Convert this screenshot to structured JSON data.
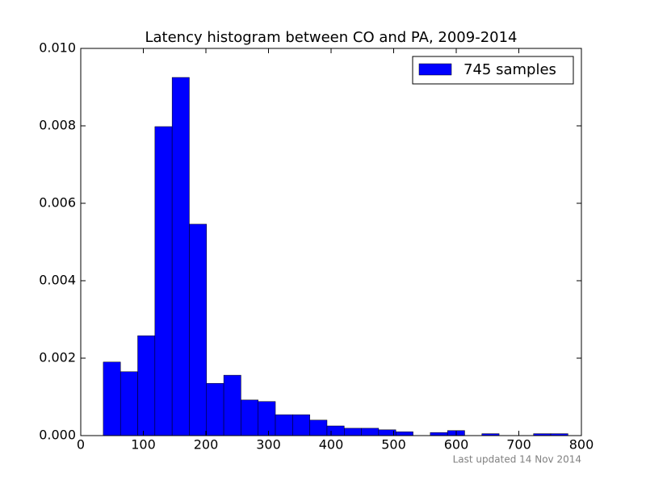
{
  "chart_data": {
    "type": "histogram",
    "title": "Latency histogram between CO and PA, 2009-2014",
    "footnote": "Last updated 14 Nov 2014",
    "bins": [
      36,
      63.5,
      91,
      118.5,
      146,
      173.5,
      201,
      228.5,
      256,
      283.5,
      311,
      338.5,
      366,
      393.5,
      421,
      448.5,
      476,
      503.5,
      531,
      558.5,
      586,
      613.5,
      641,
      668.5,
      696,
      723.5,
      751,
      778.5
    ],
    "series": [
      {
        "name": "745 samples",
        "color": "#0000ff",
        "values": [
          0.0019,
          0.00165,
          0.00258,
          0.00798,
          0.00925,
          0.00546,
          0.00135,
          0.00156,
          0.00092,
          0.00088,
          0.00054,
          0.00054,
          0.0004,
          0.00025,
          0.00019,
          0.00019,
          0.00015,
          0.0001,
          0,
          8e-05,
          0.00013,
          0,
          5e-05,
          0,
          0,
          5e-05,
          5e-05
        ]
      }
    ],
    "xlim": [
      0,
      800
    ],
    "xticks": [
      0,
      100,
      200,
      300,
      400,
      500,
      600,
      700,
      800
    ],
    "ylim": [
      0,
      0.01
    ],
    "yticks": [
      {
        "value": 0,
        "label": "0.000"
      },
      {
        "value": 0.002,
        "label": "0.002"
      },
      {
        "value": 0.004,
        "label": "0.004"
      },
      {
        "value": 0.006,
        "label": "0.006"
      },
      {
        "value": 0.008,
        "label": "0.008"
      },
      {
        "value": 0.01,
        "label": "0.010"
      }
    ],
    "legend": "upper right",
    "grid": false
  }
}
